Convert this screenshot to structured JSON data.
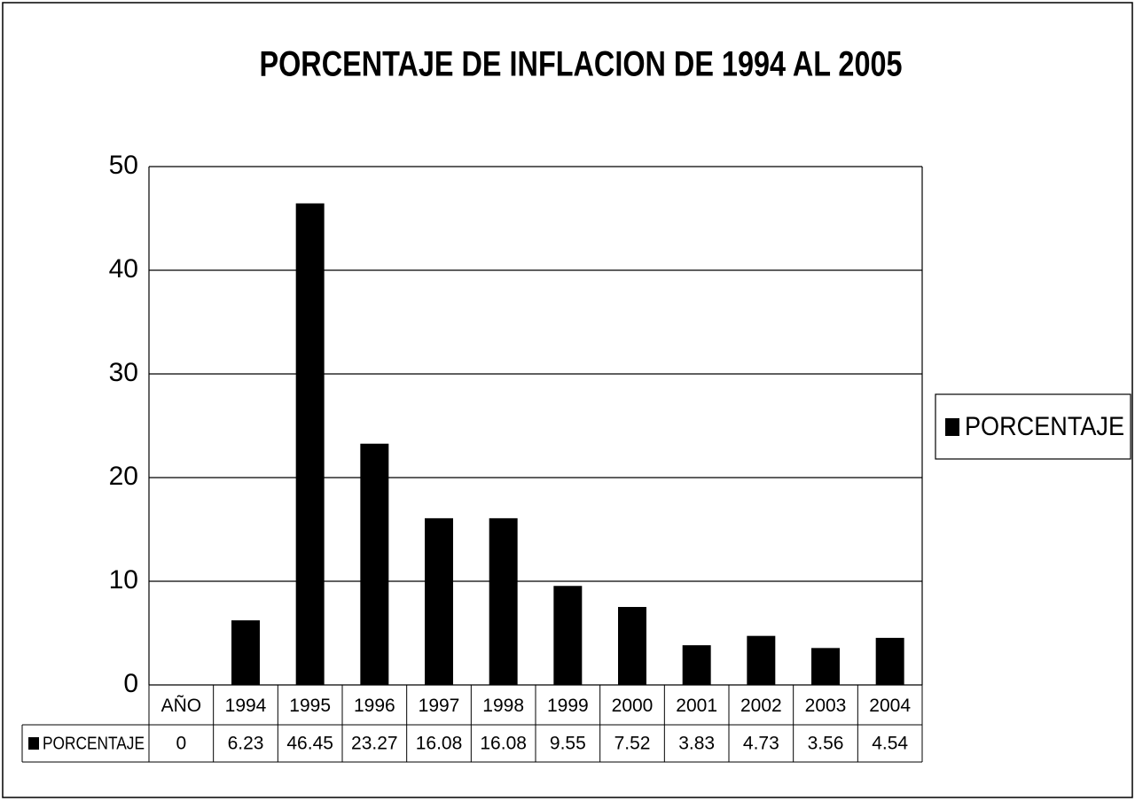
{
  "chart_data": {
    "type": "bar",
    "title": "PORCENTAJE DE INFLACION DE 1994 AL 2005",
    "categories": [
      "AÑO",
      "1994",
      "1995",
      "1996",
      "1997",
      "1998",
      "1999",
      "2000",
      "2001",
      "2002",
      "2003",
      "2004"
    ],
    "series": [
      {
        "name": "PORCENTAJE",
        "color": "#000000",
        "values": [
          0,
          6.23,
          46.45,
          23.27,
          16.08,
          16.08,
          9.55,
          7.52,
          3.83,
          4.73,
          3.56,
          4.54
        ]
      }
    ],
    "ylim": [
      0,
      50
    ],
    "yticks": [
      0,
      10,
      20,
      30,
      40,
      50
    ],
    "grid": true,
    "legend": "right"
  }
}
